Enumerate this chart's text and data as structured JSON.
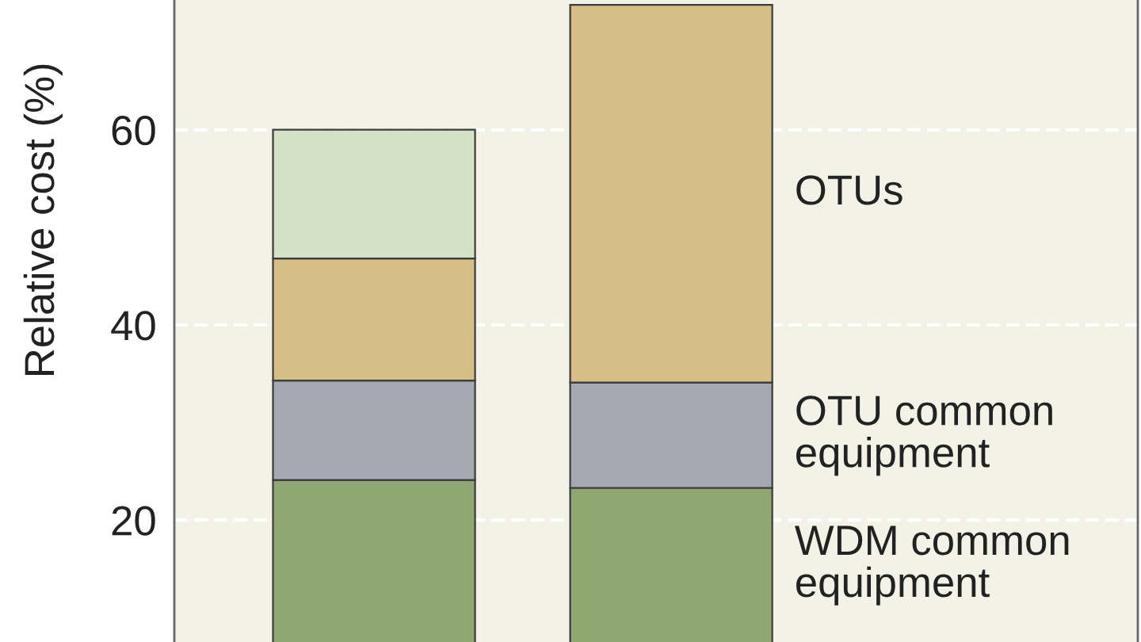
{
  "chart_data": {
    "type": "bar",
    "stacked": true,
    "ylabel": "Relative cost (%)",
    "categories": [
      null,
      null
    ],
    "series": [
      {
        "name": "WDM common equipment",
        "color": "#8fa871",
        "values": [
          24.1,
          23.3
        ]
      },
      {
        "name": "OTU common equipment",
        "color": "#a6a9b2",
        "values": [
          10.2,
          10.8
        ]
      },
      {
        "name": "OTUs",
        "color": "#d6be86",
        "values": [
          12.5,
          38.7
        ]
      },
      {
        "color": "#d3e2c4",
        "values": [
          13.2,
          null
        ]
      }
    ],
    "ylim": [
      7.5,
      73.3
    ],
    "yticks": [
      20,
      40,
      60
    ],
    "grid": "y"
  }
}
